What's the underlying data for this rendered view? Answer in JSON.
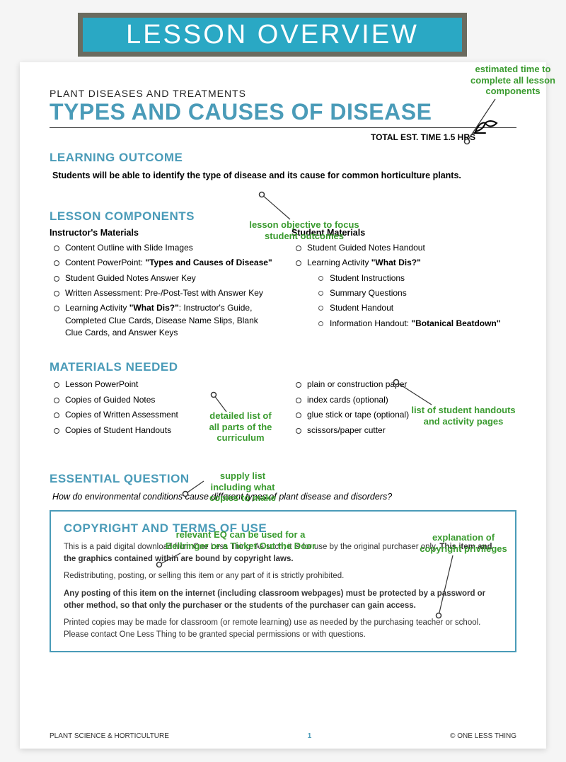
{
  "banner": {
    "text": "LESSON OVERVIEW",
    "bg": "#2aa8c4",
    "frame": "#6b6b5f"
  },
  "header": {
    "unit": "PLANT DISEASES AND TREATMENTS",
    "title": "TYPES AND CAUSES OF DISEASE",
    "time_label": "TOTAL EST. TIME 1.5  HRS"
  },
  "learning_outcome": {
    "heading": "LEARNING OUTCOME",
    "text": "Students will be able to identify the type of disease and its cause for common horticulture plants."
  },
  "lesson_components": {
    "heading": "LESSON COMPONENTS",
    "instructor_heading": "Instructor's Materials",
    "student_heading": "Student Materials",
    "instructor": [
      "Content Outline with Slide Images",
      "Content PowerPoint: \"Types and Causes of Disease\"",
      "Student Guided Notes Answer Key",
      "Written Assessment: Pre-/Post-Test with Answer Key",
      "Learning Activity \"What Dis?\": Instructor's Guide, Completed Clue Cards, Disease Name Slips, Blank Clue Cards, and Answer Keys"
    ],
    "student": [
      "Student Guided Notes Handout",
      "Learning Activity \"What Dis?\""
    ],
    "student_sub": [
      "Student Instructions",
      "Summary Questions",
      "Student Handout",
      "Information Handout: \"Botanical Beatdown\""
    ]
  },
  "materials": {
    "heading": "MATERIALS NEEDED",
    "left": [
      "Lesson PowerPoint",
      "Copies of Guided Notes",
      "Copies of Written Assessment",
      "Copies of Student Handouts"
    ],
    "right": [
      "plain or construction paper",
      "index cards (optional)",
      "glue stick or tape (optional)",
      "scissors/paper cutter"
    ]
  },
  "eq": {
    "heading": "ESSENTIAL QUESTION",
    "text": "How do environmental conditions cause different types of plant disease and disorders?"
  },
  "copyright": {
    "heading": "COPYRIGHT AND TERMS OF USE",
    "p1a": "This is a paid digital download from One Less Thing. As such, it is for use by the original purchaser only. ",
    "p1b": "This item and the graphics contained within are bound by copyright laws.",
    "p2": "Redistributing, posting, or selling this item or any part of it is strictly prohibited.",
    "p3": "Any posting of this item on the internet (including classroom webpages) must be protected by a password or other method, so that only the purchaser or the students of the purchaser can gain access.",
    "p4": "Printed copies may be made for classroom (or remote learning) use as needed by the purchasing teacher or school. Please contact One Less Thing to be granted special permissions or with questions."
  },
  "footer": {
    "left": "PLANT SCIENCE & HORTICULTURE",
    "page": "1",
    "right": "© ONE LESS THING"
  },
  "annotations": {
    "time": "estimated time to\ncomplete all lesson\ncomponents",
    "objective": "lesson objective to focus\nstudent  outcomes",
    "curriculum": "detailed list of\nall parts of the\ncurriculum",
    "handouts": "list of student handouts\nand activity pages",
    "supplies": "supply list\nincluding what\ncopies to make",
    "eq": "relevant EQ can be used for a\nBellringer or a Ticket Out the Door",
    "copyright": "explanation of\ncopyright privileges"
  },
  "colors": {
    "accent": "#4a9bb8",
    "annot": "#3a9b2f"
  }
}
